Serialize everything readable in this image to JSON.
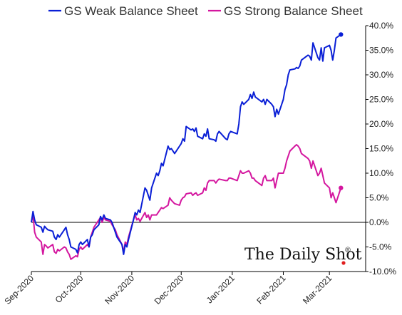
{
  "chart_data": {
    "type": "line",
    "legend_position": "top",
    "grid": false,
    "ylim": [
      -10,
      40
    ],
    "yticks": [
      -10,
      -5,
      0,
      5,
      10,
      15,
      20,
      25,
      30,
      35,
      40
    ],
    "ytick_labels": [
      "-10.0%",
      "-5.0%",
      "0.0%",
      "5.0%",
      "10.0%",
      "15.0%",
      "20.0%",
      "25.0%",
      "30.0%",
      "35.0%",
      "40.0%"
    ],
    "x_start": "2020-09-01",
    "x_end": "2021-03-23",
    "xticks": [
      "2020-09-01",
      "2020-10-01",
      "2020-11-01",
      "2020-12-01",
      "2021-01-01",
      "2021-02-01",
      "2021-03-01"
    ],
    "xtick_labels": [
      "Sep-2020",
      "Oct-2020",
      "Nov-2020",
      "Dec-2020",
      "Jan-2021",
      "Feb-2021",
      "Mar-2021"
    ],
    "series": [
      {
        "name": "GS Weak Balance Sheet",
        "color": "#0a1fd6",
        "points": [
          [
            "2020-09-01",
            0.0
          ],
          [
            "2020-09-02",
            2.2
          ],
          [
            "2020-09-03",
            0.5
          ],
          [
            "2020-09-04",
            -0.5
          ],
          [
            "2020-09-07",
            -1.0
          ],
          [
            "2020-09-08",
            -2.0
          ],
          [
            "2020-09-09",
            -0.8
          ],
          [
            "2020-09-10",
            -1.2
          ],
          [
            "2020-09-11",
            -1.5
          ],
          [
            "2020-09-14",
            -1.8
          ],
          [
            "2020-09-15",
            -3.0
          ],
          [
            "2020-09-16",
            -3.5
          ],
          [
            "2020-09-17",
            -2.5
          ],
          [
            "2020-09-18",
            -3.0
          ],
          [
            "2020-09-21",
            -1.5
          ],
          [
            "2020-09-22",
            -1.0
          ],
          [
            "2020-09-23",
            -2.5
          ],
          [
            "2020-09-24",
            -3.5
          ],
          [
            "2020-09-25",
            -5.0
          ],
          [
            "2020-09-28",
            -5.5
          ],
          [
            "2020-09-29",
            -6.2
          ],
          [
            "2020-09-30",
            -4.5
          ],
          [
            "2020-10-01",
            -4.0
          ],
          [
            "2020-10-02",
            -4.5
          ],
          [
            "2020-10-05",
            -3.5
          ],
          [
            "2020-10-06",
            -5.0
          ],
          [
            "2020-10-07",
            -3.0
          ],
          [
            "2020-10-08",
            -2.5
          ],
          [
            "2020-10-09",
            -1.5
          ],
          [
            "2020-10-12",
            -0.5
          ],
          [
            "2020-10-13",
            1.2
          ],
          [
            "2020-10-14",
            0.5
          ],
          [
            "2020-10-15",
            1.5
          ],
          [
            "2020-10-16",
            0.8
          ],
          [
            "2020-10-19",
            0.5
          ],
          [
            "2020-10-20",
            0.0
          ],
          [
            "2020-10-21",
            -1.0
          ],
          [
            "2020-10-22",
            -2.0
          ],
          [
            "2020-10-23",
            -3.0
          ],
          [
            "2020-10-26",
            -4.5
          ],
          [
            "2020-10-27",
            -6.5
          ],
          [
            "2020-10-28",
            -4.5
          ],
          [
            "2020-10-29",
            -5.0
          ],
          [
            "2020-10-30",
            -3.5
          ],
          [
            "2020-11-02",
            0.5
          ],
          [
            "2020-11-03",
            2.0
          ],
          [
            "2020-11-04",
            1.5
          ],
          [
            "2020-11-05",
            2.5
          ],
          [
            "2020-11-06",
            2.0
          ],
          [
            "2020-11-09",
            7.0
          ],
          [
            "2020-11-10",
            6.5
          ],
          [
            "2020-11-11",
            5.5
          ],
          [
            "2020-11-12",
            4.5
          ],
          [
            "2020-11-13",
            7.0
          ],
          [
            "2020-11-16",
            10.0
          ],
          [
            "2020-11-17",
            9.5
          ],
          [
            "2020-11-18",
            10.5
          ],
          [
            "2020-11-19",
            12.0
          ],
          [
            "2020-11-20",
            11.5
          ],
          [
            "2020-11-23",
            15.5
          ],
          [
            "2020-11-24",
            14.8
          ],
          [
            "2020-11-25",
            15.0
          ],
          [
            "2020-11-27",
            14.0
          ],
          [
            "2020-11-30",
            15.5
          ],
          [
            "2020-12-01",
            16.0
          ],
          [
            "2020-12-02",
            17.0
          ],
          [
            "2020-12-03",
            16.5
          ],
          [
            "2020-12-04",
            19.5
          ],
          [
            "2020-12-07",
            18.8
          ],
          [
            "2020-12-08",
            19.0
          ],
          [
            "2020-12-09",
            18.5
          ],
          [
            "2020-12-10",
            19.2
          ],
          [
            "2020-12-11",
            17.5
          ],
          [
            "2020-12-14",
            17.0
          ],
          [
            "2020-12-15",
            18.0
          ],
          [
            "2020-12-16",
            17.5
          ],
          [
            "2020-12-17",
            19.0
          ],
          [
            "2020-12-18",
            17.0
          ],
          [
            "2020-12-21",
            16.8
          ],
          [
            "2020-12-22",
            16.5
          ],
          [
            "2020-12-23",
            18.0
          ],
          [
            "2020-12-24",
            18.5
          ],
          [
            "2020-12-28",
            17.0
          ],
          [
            "2020-12-29",
            16.8
          ],
          [
            "2020-12-30",
            18.0
          ],
          [
            "2020-12-31",
            18.5
          ],
          [
            "2021-01-04",
            18.0
          ],
          [
            "2021-01-05",
            20.0
          ],
          [
            "2021-01-06",
            23.5
          ],
          [
            "2021-01-07",
            24.5
          ],
          [
            "2021-01-08",
            24.0
          ],
          [
            "2021-01-11",
            25.0
          ],
          [
            "2021-01-12",
            26.0
          ],
          [
            "2021-01-13",
            25.2
          ],
          [
            "2021-01-14",
            26.5
          ],
          [
            "2021-01-15",
            25.5
          ],
          [
            "2021-01-19",
            24.5
          ],
          [
            "2021-01-20",
            25.0
          ],
          [
            "2021-01-21",
            24.0
          ],
          [
            "2021-01-22",
            25.0
          ],
          [
            "2021-01-25",
            24.0
          ],
          [
            "2021-01-26",
            23.5
          ],
          [
            "2021-01-27",
            21.5
          ],
          [
            "2021-01-28",
            23.0
          ],
          [
            "2021-01-29",
            22.0
          ],
          [
            "2021-02-01",
            25.0
          ],
          [
            "2021-02-02",
            27.0
          ],
          [
            "2021-02-03",
            28.0
          ],
          [
            "2021-02-04",
            30.0
          ],
          [
            "2021-02-05",
            31.0
          ],
          [
            "2021-02-08",
            31.2
          ],
          [
            "2021-02-09",
            31.5
          ],
          [
            "2021-02-10",
            31.3
          ],
          [
            "2021-02-11",
            31.8
          ],
          [
            "2021-02-12",
            33.0
          ],
          [
            "2021-02-16",
            34.0
          ],
          [
            "2021-02-17",
            33.8
          ],
          [
            "2021-02-18",
            33.0
          ],
          [
            "2021-02-19",
            36.5
          ],
          [
            "2021-02-22",
            33.5
          ],
          [
            "2021-02-23",
            33.0
          ],
          [
            "2021-02-24",
            35.5
          ],
          [
            "2021-02-25",
            32.8
          ],
          [
            "2021-02-26",
            35.5
          ],
          [
            "2021-03-01",
            36.0
          ],
          [
            "2021-03-02",
            35.0
          ],
          [
            "2021-03-03",
            33.0
          ],
          [
            "2021-03-04",
            35.0
          ],
          [
            "2021-03-05",
            37.5
          ],
          [
            "2021-03-08",
            38.2
          ]
        ]
      },
      {
        "name": "GS Strong Balance Sheet",
        "color": "#d4179f",
        "points": [
          [
            "2020-09-01",
            0.0
          ],
          [
            "2020-09-02",
            1.5
          ],
          [
            "2020-09-03",
            -2.0
          ],
          [
            "2020-09-04",
            -3.0
          ],
          [
            "2020-09-07",
            -4.0
          ],
          [
            "2020-09-08",
            -6.5
          ],
          [
            "2020-09-09",
            -4.5
          ],
          [
            "2020-09-10",
            -4.8
          ],
          [
            "2020-09-11",
            -5.2
          ],
          [
            "2020-09-14",
            -4.5
          ],
          [
            "2020-09-15",
            -6.0
          ],
          [
            "2020-09-16",
            -6.3
          ],
          [
            "2020-09-17",
            -5.5
          ],
          [
            "2020-09-18",
            -5.8
          ],
          [
            "2020-09-21",
            -5.0
          ],
          [
            "2020-09-22",
            -5.2
          ],
          [
            "2020-09-23",
            -6.0
          ],
          [
            "2020-09-24",
            -6.5
          ],
          [
            "2020-09-25",
            -7.5
          ],
          [
            "2020-09-28",
            -6.8
          ],
          [
            "2020-09-29",
            -7.0
          ],
          [
            "2020-09-30",
            -5.5
          ],
          [
            "2020-10-01",
            -5.0
          ],
          [
            "2020-10-02",
            -5.5
          ],
          [
            "2020-10-05",
            -4.5
          ],
          [
            "2020-10-06",
            -5.0
          ],
          [
            "2020-10-07",
            -3.0
          ],
          [
            "2020-10-08",
            -2.0
          ],
          [
            "2020-10-09",
            -1.0
          ],
          [
            "2020-10-12",
            0.5
          ],
          [
            "2020-10-13",
            1.0
          ],
          [
            "2020-10-14",
            0.0
          ],
          [
            "2020-10-15",
            1.0
          ],
          [
            "2020-10-16",
            0.5
          ],
          [
            "2020-10-19",
            0.2
          ],
          [
            "2020-10-20",
            -0.5
          ],
          [
            "2020-10-21",
            -1.0
          ],
          [
            "2020-10-22",
            -1.5
          ],
          [
            "2020-10-23",
            -2.5
          ],
          [
            "2020-10-26",
            -4.5
          ],
          [
            "2020-10-27",
            -6.0
          ],
          [
            "2020-10-28",
            -4.0
          ],
          [
            "2020-10-29",
            -4.5
          ],
          [
            "2020-10-30",
            -3.0
          ],
          [
            "2020-11-02",
            0.5
          ],
          [
            "2020-11-03",
            1.5
          ],
          [
            "2020-11-04",
            0.5
          ],
          [
            "2020-11-05",
            0.8
          ],
          [
            "2020-11-06",
            0.2
          ],
          [
            "2020-11-09",
            2.0
          ],
          [
            "2020-11-10",
            1.0
          ],
          [
            "2020-11-11",
            1.5
          ],
          [
            "2020-11-12",
            0.5
          ],
          [
            "2020-11-13",
            1.5
          ],
          [
            "2020-11-16",
            1.5
          ],
          [
            "2020-11-17",
            2.0
          ],
          [
            "2020-11-18",
            2.5
          ],
          [
            "2020-11-19",
            3.0
          ],
          [
            "2020-11-20",
            2.8
          ],
          [
            "2020-11-23",
            3.5
          ],
          [
            "2020-11-24",
            5.0
          ],
          [
            "2020-11-25",
            4.5
          ],
          [
            "2020-11-27",
            3.8
          ],
          [
            "2020-11-30",
            3.5
          ],
          [
            "2020-12-01",
            4.5
          ],
          [
            "2020-12-02",
            5.0
          ],
          [
            "2020-12-03",
            5.2
          ],
          [
            "2020-12-04",
            5.8
          ],
          [
            "2020-12-07",
            6.0
          ],
          [
            "2020-12-08",
            5.5
          ],
          [
            "2020-12-09",
            5.8
          ],
          [
            "2020-12-10",
            6.0
          ],
          [
            "2020-12-11",
            5.5
          ],
          [
            "2020-12-14",
            6.0
          ],
          [
            "2020-12-15",
            7.0
          ],
          [
            "2020-12-16",
            6.5
          ],
          [
            "2020-12-17",
            8.0
          ],
          [
            "2020-12-18",
            8.5
          ],
          [
            "2020-12-21",
            8.5
          ],
          [
            "2020-12-22",
            8.0
          ],
          [
            "2020-12-23",
            8.5
          ],
          [
            "2020-12-24",
            8.8
          ],
          [
            "2020-12-28",
            8.5
          ],
          [
            "2020-12-29",
            8.5
          ],
          [
            "2020-12-30",
            9.0
          ],
          [
            "2020-12-31",
            9.0
          ],
          [
            "2021-01-04",
            8.5
          ],
          [
            "2021-01-05",
            9.5
          ],
          [
            "2021-01-06",
            10.5
          ],
          [
            "2021-01-07",
            10.0
          ],
          [
            "2021-01-08",
            10.0
          ],
          [
            "2021-01-11",
            10.5
          ],
          [
            "2021-01-12",
            10.0
          ],
          [
            "2021-01-13",
            9.0
          ],
          [
            "2021-01-14",
            9.0
          ],
          [
            "2021-01-15",
            8.5
          ],
          [
            "2021-01-19",
            7.5
          ],
          [
            "2021-01-20",
            9.0
          ],
          [
            "2021-01-21",
            9.5
          ],
          [
            "2021-01-22",
            8.5
          ],
          [
            "2021-01-25",
            8.5
          ],
          [
            "2021-01-26",
            9.0
          ],
          [
            "2021-01-27",
            7.0
          ],
          [
            "2021-01-28",
            8.5
          ],
          [
            "2021-01-29",
            10.0
          ],
          [
            "2021-02-01",
            10.0
          ],
          [
            "2021-02-02",
            11.0
          ],
          [
            "2021-02-03",
            12.5
          ],
          [
            "2021-02-04",
            13.5
          ],
          [
            "2021-02-05",
            14.5
          ],
          [
            "2021-02-08",
            15.5
          ],
          [
            "2021-02-09",
            15.8
          ],
          [
            "2021-02-10",
            15.5
          ],
          [
            "2021-02-11",
            15.0
          ],
          [
            "2021-02-12",
            14.0
          ],
          [
            "2021-02-16",
            13.0
          ],
          [
            "2021-02-17",
            12.5
          ],
          [
            "2021-02-18",
            11.0
          ],
          [
            "2021-02-19",
            12.5
          ],
          [
            "2021-02-22",
            9.5
          ],
          [
            "2021-02-23",
            10.0
          ],
          [
            "2021-02-24",
            11.0
          ],
          [
            "2021-02-25",
            9.5
          ],
          [
            "2021-02-26",
            8.0
          ],
          [
            "2021-03-01",
            7.0
          ],
          [
            "2021-03-02",
            5.0
          ],
          [
            "2021-03-03",
            6.0
          ],
          [
            "2021-03-04",
            5.0
          ],
          [
            "2021-03-05",
            4.0
          ],
          [
            "2021-03-08",
            7.0
          ]
        ]
      }
    ],
    "watermark": "The Daily Shot",
    "watermark_mark": "®",
    "watermark_dot_color": "#e02020"
  }
}
